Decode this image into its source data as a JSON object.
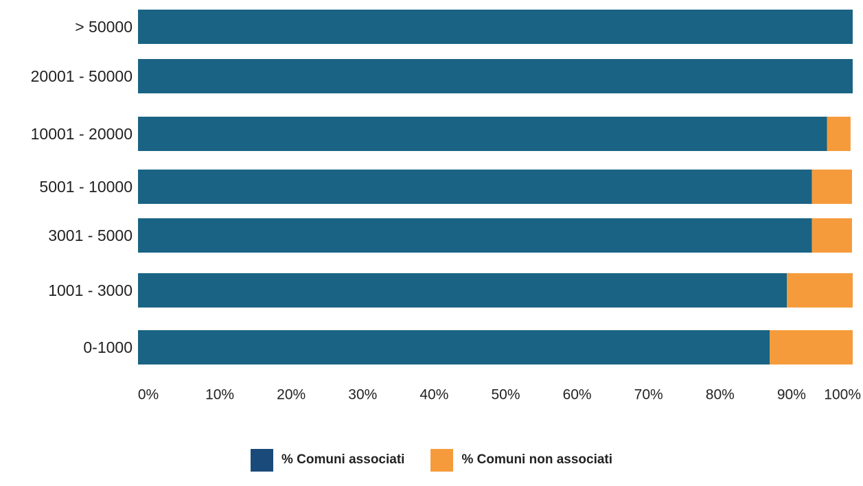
{
  "colors": {
    "associati": "#1a6384",
    "non_associati": "#f59b3b",
    "legend_associati": "#1a4a7a"
  },
  "chart_data": {
    "type": "bar",
    "orientation": "horizontal",
    "stacked": true,
    "categories": [
      "> 50000",
      "20001 - 50000",
      "10001 - 20000",
      "5001 - 10000",
      "3001 - 5000",
      "1001 - 3000",
      "0-1000"
    ],
    "series": [
      {
        "name": "% Comuni associati",
        "values": [
          100,
          100,
          96.4,
          94.3,
          94.3,
          90.8,
          88.4
        ]
      },
      {
        "name": "% Comuni non associati",
        "values": [
          0,
          0,
          3.3,
          5.6,
          5.6,
          9.2,
          11.6
        ]
      }
    ],
    "xlim": [
      0,
      100
    ],
    "xticks": [
      "0%",
      "10%",
      "20%",
      "30%",
      "40%",
      "50%",
      "60%",
      "70%",
      "80%",
      "90%",
      "100%"
    ],
    "xlabel": "",
    "ylabel": "",
    "title": "",
    "grid": false,
    "legend_position": "bottom-center"
  }
}
